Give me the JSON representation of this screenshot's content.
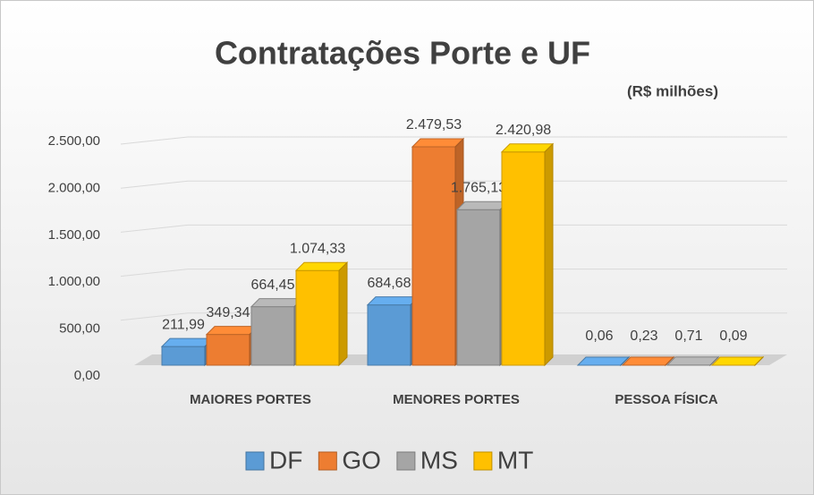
{
  "chart_data": {
    "type": "bar3d",
    "title": "Contratações Porte e UF",
    "subtitle": "(R$ milhões)",
    "categories": [
      "MAIORES PORTES",
      "MENORES PORTES",
      "PESSOA FÍSICA"
    ],
    "series": [
      {
        "name": "DF",
        "color": "#5b9bd5",
        "values": [
          211.99,
          684.68,
          0.06
        ],
        "value_labels": [
          "211,99",
          "684,68",
          "0,06"
        ]
      },
      {
        "name": "GO",
        "color": "#ed7d31",
        "values": [
          349.34,
          2479.53,
          0.23
        ],
        "value_labels": [
          "349,34",
          "2.479,53",
          "0,23"
        ]
      },
      {
        "name": "MS",
        "color": "#a5a5a5",
        "values": [
          664.45,
          1765.13,
          0.71
        ],
        "value_labels": [
          "664,45",
          "1.765,13",
          "0,71"
        ]
      },
      {
        "name": "MT",
        "color": "#ffc000",
        "values": [
          1074.33,
          2420.98,
          0.09
        ],
        "value_labels": [
          "1.074,33",
          "2.420,98",
          "0,09"
        ]
      }
    ],
    "ylim": [
      0,
      2500
    ],
    "yticks": [
      {
        "value": 0,
        "label": "0,00"
      },
      {
        "value": 500,
        "label": "500,00"
      },
      {
        "value": 1000,
        "label": "1.000,00"
      },
      {
        "value": 1500,
        "label": "1.500,00"
      },
      {
        "value": 2000,
        "label": "2.000,00"
      },
      {
        "value": 2500,
        "label": "2.500,00"
      }
    ],
    "grid": true,
    "legend": "bottom"
  }
}
